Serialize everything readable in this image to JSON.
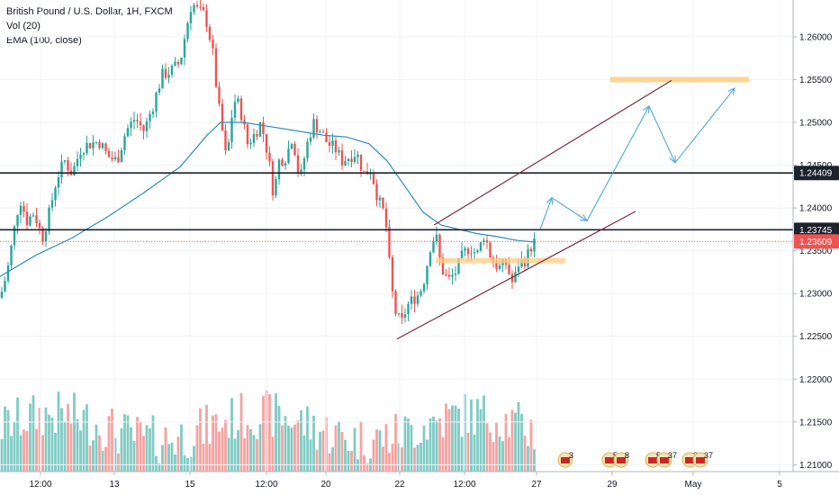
{
  "legend": {
    "symbol": "British Pound / U.S. Dollar, 1H, FXCM",
    "volume": "Vol (20)",
    "ema": "EMA (100, close)"
  },
  "colors": {
    "up": "#26a69a",
    "down": "#ef5350",
    "vol_up": "#80cbc4",
    "vol_down": "#f4a3a1",
    "ema": "#2b8cbe",
    "channel": "#7b2b3a",
    "projection": "#4ea8d8",
    "zone": "#ffcc80",
    "level": "#1e222d",
    "current": "#ef5350"
  },
  "chart_data": {
    "type": "candlestick",
    "title": "British Pound / U.S. Dollar, 1H, FXCM",
    "indicators": [
      "Vol (20)",
      "EMA (100, close)"
    ],
    "y_ticks": [
      "1.26000",
      "1.25500",
      "1.25000",
      "1.24500",
      "1.24000",
      "1.23500",
      "1.23000",
      "1.22500",
      "1.22000",
      "1.21500",
      "1.21000"
    ],
    "x_ticks": [
      "12:00",
      "13",
      "15",
      "12:00",
      "20",
      "22",
      "12:00",
      "27",
      "29",
      "May",
      "5"
    ],
    "ylim": [
      1.2092,
      1.2643
    ],
    "horizontal_levels": [
      {
        "price": 1.24409,
        "label": "1.24409"
      },
      {
        "price": 1.23745,
        "label": "1.23745"
      }
    ],
    "current_price": {
      "price": 1.23609,
      "label": "1.23609"
    },
    "price_path": [
      [
        0,
        1.2295
      ],
      [
        8,
        1.2325
      ],
      [
        15,
        1.237
      ],
      [
        22,
        1.2412
      ],
      [
        30,
        1.2385
      ],
      [
        38,
        1.2395
      ],
      [
        47,
        1.2365
      ],
      [
        55,
        1.2395
      ],
      [
        63,
        1.2435
      ],
      [
        72,
        1.2455
      ],
      [
        80,
        1.244
      ],
      [
        90,
        1.247
      ],
      [
        100,
        1.2475
      ],
      [
        110,
        1.2478
      ],
      [
        120,
        1.246
      ],
      [
        130,
        1.2455
      ],
      [
        140,
        1.249
      ],
      [
        150,
        1.2505
      ],
      [
        160,
        1.249
      ],
      [
        170,
        1.252
      ],
      [
        180,
        1.2555
      ],
      [
        190,
        1.256
      ],
      [
        200,
        1.257
      ],
      [
        208,
        1.2615
      ],
      [
        213,
        1.264
      ],
      [
        220,
        1.263
      ],
      [
        228,
        1.2625
      ],
      [
        236,
        1.2585
      ],
      [
        242,
        1.2525
      ],
      [
        247,
        1.249
      ],
      [
        252,
        1.245
      ],
      [
        256,
        1.25
      ],
      [
        262,
        1.253
      ],
      [
        268,
        1.251
      ],
      [
        275,
        1.2475
      ],
      [
        282,
        1.2485
      ],
      [
        290,
        1.25
      ],
      [
        298,
        1.246
      ],
      [
        304,
        1.2415
      ],
      [
        310,
        1.2455
      ],
      [
        318,
        1.246
      ],
      [
        325,
        1.2485
      ],
      [
        333,
        1.243
      ],
      [
        340,
        1.247
      ],
      [
        348,
        1.25
      ],
      [
        356,
        1.249
      ],
      [
        364,
        1.2475
      ],
      [
        372,
        1.247
      ],
      [
        380,
        1.2455
      ],
      [
        388,
        1.246
      ],
      [
        396,
        1.2465
      ],
      [
        404,
        1.244
      ],
      [
        412,
        1.2445
      ],
      [
        420,
        1.241
      ],
      [
        428,
        1.239
      ],
      [
        432,
        1.234
      ],
      [
        436,
        1.23
      ],
      [
        440,
        1.2275
      ],
      [
        446,
        1.2265
      ],
      [
        452,
        1.2285
      ],
      [
        460,
        1.2295
      ],
      [
        466,
        1.23
      ],
      [
        472,
        1.232
      ],
      [
        478,
        1.2355
      ],
      [
        484,
        1.237
      ],
      [
        490,
        1.233
      ],
      [
        498,
        1.2315
      ],
      [
        506,
        1.2325
      ],
      [
        514,
        1.2345
      ],
      [
        522,
        1.2355
      ],
      [
        530,
        1.2345
      ],
      [
        538,
        1.237
      ],
      [
        546,
        1.234
      ],
      [
        554,
        1.233
      ],
      [
        562,
        1.2335
      ],
      [
        570,
        1.231
      ],
      [
        576,
        1.2335
      ],
      [
        584,
        1.234
      ],
      [
        590,
        1.2355
      ],
      [
        595,
        1.2362
      ]
    ],
    "ema_path": [
      [
        0,
        1.232
      ],
      [
        40,
        1.2345
      ],
      [
        80,
        1.2365
      ],
      [
        120,
        1.239
      ],
      [
        160,
        1.2418
      ],
      [
        200,
        1.2448
      ],
      [
        230,
        1.2485
      ],
      [
        245,
        1.25
      ],
      [
        270,
        1.25
      ],
      [
        300,
        1.2495
      ],
      [
        330,
        1.249
      ],
      [
        360,
        1.2485
      ],
      [
        385,
        1.2483
      ],
      [
        410,
        1.2475
      ],
      [
        430,
        1.2455
      ],
      [
        450,
        1.2425
      ],
      [
        470,
        1.2395
      ],
      [
        490,
        1.238
      ],
      [
        510,
        1.2375
      ],
      [
        530,
        1.237
      ],
      [
        550,
        1.2367
      ],
      [
        575,
        1.2362
      ],
      [
        595,
        1.236
      ]
    ],
    "annotations": {
      "channel_upper": [
        [
          482,
          1.238
        ],
        [
          746,
          1.2549
        ]
      ],
      "channel_lower": [
        [
          441,
          1.2247
        ],
        [
          706,
          1.2396
        ]
      ],
      "resistance_zone": {
        "x": [
          678,
          832
        ],
        "price": 1.255
      },
      "support_zone": {
        "x": [
          484,
          628
        ],
        "price": 1.23385
      },
      "projection": [
        [
          600,
          1.2375
        ],
        [
          613,
          1.2412
        ],
        [
          652,
          1.2385
        ],
        [
          721,
          1.2519
        ],
        [
          750,
          1.2453
        ],
        [
          816,
          1.254
        ]
      ]
    },
    "events": [
      {
        "label": "3",
        "x": 628
      },
      {
        "label": "5",
        "x": 677
      },
      {
        "label": "8",
        "x": 690
      },
      {
        "label": "5",
        "x": 725
      },
      {
        "label": "37",
        "x": 738
      },
      {
        "label": "2",
        "x": 766
      },
      {
        "label": "37",
        "x": 778
      }
    ]
  }
}
